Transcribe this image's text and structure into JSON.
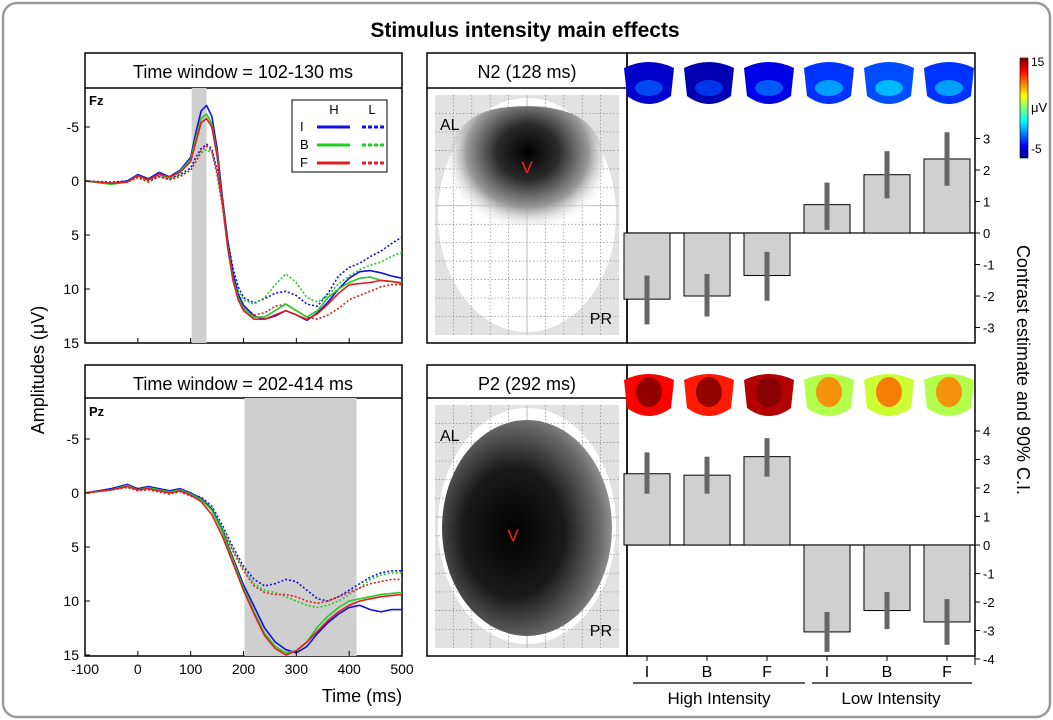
{
  "title": "Stimulus intensity main effects",
  "ylabel_left": "Amplitudes (μV)",
  "ylabel_right": "Contrast estimate and 90% C.I.",
  "xlabel": "Time (ms)",
  "colorbar": {
    "label": "μV",
    "ticks": [
      "15",
      "-5"
    ],
    "range": [
      -5,
      15
    ]
  },
  "colors": {
    "I": "#1010e0",
    "B": "#22cc22",
    "F": "#e02020",
    "bar": "#d0d0d0",
    "ci": "#666666",
    "marker": "#ff2020"
  },
  "legend": {
    "header_H": "H",
    "header_L": "L",
    "rows": [
      "I",
      "B",
      "F"
    ]
  },
  "group_labels": {
    "high": "High Intensity",
    "low": "Low Intensity"
  },
  "bar_categories": [
    "I",
    "B",
    "F",
    "I",
    "B",
    "F"
  ],
  "top": {
    "window_label": "Time window = 102-130 ms",
    "channel": "Fz",
    "component": "N2 (128 ms)",
    "map_labels": {
      "al": "AL",
      "pr": "PR"
    },
    "peak_marker": "V"
  },
  "bottom": {
    "window_label": "Time window = 202-414 ms",
    "channel": "Pz",
    "component": "P2 (292 ms)",
    "map_labels": {
      "al": "AL",
      "pr": "PR"
    },
    "peak_marker": "V"
  },
  "chart_data": [
    {
      "type": "line",
      "title": "Time window = 102-130 ms",
      "channel": "Fz",
      "xlabel": "Time (ms)",
      "ylabel": "Amplitudes (μV)",
      "xlim": [
        -100,
        500
      ],
      "ylim": [
        15,
        -8
      ],
      "y_inverted": true,
      "xticks": [
        -100,
        0,
        100,
        200,
        300,
        400,
        500
      ],
      "yticks": [
        -5,
        0,
        5,
        10,
        15
      ],
      "shaded_window": [
        102,
        130
      ],
      "x": [
        -100,
        -50,
        -20,
        0,
        20,
        40,
        60,
        80,
        100,
        110,
        120,
        130,
        140,
        150,
        160,
        170,
        180,
        190,
        200,
        220,
        240,
        260,
        280,
        300,
        320,
        340,
        360,
        380,
        400,
        420,
        440,
        460,
        480,
        500
      ],
      "series": [
        {
          "name": "I",
          "condition": "H",
          "values": [
            0,
            0.2,
            0,
            -0.6,
            -0.2,
            -0.8,
            -0.4,
            -1.0,
            -2.2,
            -4.5,
            -6.5,
            -7.0,
            -6.0,
            -3.0,
            1.5,
            5.5,
            8.5,
            10.5,
            11.5,
            12.5,
            12.8,
            12.5,
            12.0,
            12.4,
            12.9,
            12.2,
            11.2,
            10.0,
            9.0,
            8.4,
            8.3,
            8.5,
            8.8,
            9.0
          ]
        },
        {
          "name": "B",
          "condition": "H",
          "values": [
            0,
            0.3,
            0.1,
            -0.5,
            -0.1,
            -0.6,
            -0.3,
            -0.9,
            -2.0,
            -4.0,
            -5.8,
            -6.2,
            -5.3,
            -2.5,
            2.0,
            6.0,
            9.0,
            10.8,
            11.8,
            12.6,
            12.6,
            12.0,
            11.4,
            12.0,
            12.6,
            12.0,
            10.8,
            10.0,
            9.4,
            9.0,
            8.9,
            9.2,
            9.3,
            9.4
          ]
        },
        {
          "name": "F",
          "condition": "H",
          "values": [
            0,
            0.2,
            0.1,
            -0.5,
            -0.1,
            -0.6,
            -0.4,
            -0.8,
            -1.8,
            -3.6,
            -5.4,
            -5.8,
            -5.0,
            -2.3,
            2.0,
            6.2,
            9.2,
            11.0,
            12.0,
            12.8,
            12.8,
            12.4,
            12.0,
            12.4,
            12.8,
            12.3,
            11.4,
            10.4,
            9.6,
            9.5,
            9.4,
            9.2,
            9.3,
            9.5
          ]
        },
        {
          "name": "I",
          "condition": "L",
          "values": [
            0,
            0.1,
            0,
            -0.4,
            0,
            -0.4,
            -0.2,
            -0.6,
            -1.2,
            -2.2,
            -3.0,
            -3.4,
            -3.0,
            -1.0,
            2.0,
            5.5,
            8.0,
            9.8,
            10.8,
            11.3,
            10.9,
            10.4,
            10.2,
            10.6,
            11.4,
            11.6,
            10.4,
            8.8,
            8.0,
            7.6,
            7.0,
            6.5,
            5.8,
            5.2
          ]
        },
        {
          "name": "B",
          "condition": "L",
          "values": [
            0,
            0.3,
            0.1,
            -0.4,
            0,
            -0.5,
            -0.2,
            -0.5,
            -1.0,
            -1.8,
            -2.6,
            -2.9,
            -2.6,
            -0.8,
            2.2,
            5.8,
            8.5,
            10.2,
            11.0,
            11.4,
            10.8,
            9.6,
            8.6,
            9.4,
            10.8,
            11.2,
            10.6,
            9.5,
            8.8,
            8.2,
            7.8,
            7.5,
            7.0,
            6.6
          ]
        },
        {
          "name": "F",
          "condition": "L",
          "values": [
            0,
            0.2,
            0.1,
            -0.3,
            0.1,
            -0.4,
            -0.1,
            -0.4,
            -1.0,
            -1.8,
            -2.8,
            -3.2,
            -2.8,
            -0.6,
            2.4,
            6.0,
            8.8,
            10.6,
            11.6,
            12.4,
            12.2,
            11.6,
            11.4,
            12.0,
            12.6,
            12.8,
            12.4,
            11.8,
            11.0,
            10.6,
            10.2,
            9.8,
            9.6,
            9.6
          ]
        }
      ]
    },
    {
      "type": "line",
      "title": "Time window = 202-414 ms",
      "channel": "Pz",
      "xlabel": "Time (ms)",
      "ylabel": "Amplitudes (μV)",
      "xlim": [
        -100,
        500
      ],
      "ylim": [
        15,
        -8
      ],
      "y_inverted": true,
      "xticks": [
        -100,
        0,
        100,
        200,
        300,
        400,
        500
      ],
      "yticks": [
        -5,
        0,
        5,
        10,
        15
      ],
      "shaded_window": [
        202,
        414
      ],
      "x": [
        -100,
        -50,
        -20,
        0,
        20,
        40,
        60,
        80,
        100,
        120,
        140,
        160,
        180,
        200,
        220,
        240,
        260,
        280,
        300,
        320,
        340,
        360,
        380,
        400,
        420,
        440,
        460,
        480,
        500
      ],
      "series": [
        {
          "name": "I",
          "condition": "H",
          "values": [
            0,
            -0.4,
            -0.8,
            -0.4,
            -0.6,
            -0.4,
            -0.2,
            -0.4,
            0,
            0.5,
            1.5,
            3.5,
            6.0,
            8.5,
            10.5,
            12.5,
            13.8,
            14.5,
            14.8,
            14.2,
            13.0,
            12.0,
            11.2,
            10.6,
            10.4,
            10.8,
            11.0,
            10.8,
            10.8
          ]
        },
        {
          "name": "B",
          "condition": "H",
          "values": [
            0,
            -0.3,
            -0.7,
            -0.3,
            -0.5,
            -0.3,
            -0.1,
            -0.3,
            0.1,
            0.6,
            1.6,
            3.6,
            6.2,
            8.8,
            11.0,
            13.0,
            14.2,
            14.8,
            14.6,
            13.8,
            12.4,
            11.4,
            10.6,
            10.0,
            9.8,
            9.6,
            9.4,
            9.3,
            9.2
          ]
        },
        {
          "name": "F",
          "condition": "H",
          "values": [
            0,
            -0.3,
            -0.6,
            -0.3,
            -0.4,
            -0.2,
            0,
            -0.2,
            0.2,
            0.8,
            2.0,
            4.0,
            6.5,
            9.0,
            11.2,
            13.2,
            14.4,
            15.0,
            14.6,
            13.8,
            12.8,
            11.8,
            11.0,
            10.4,
            10.0,
            9.8,
            9.6,
            9.5,
            9.4
          ]
        },
        {
          "name": "I",
          "condition": "L",
          "values": [
            0,
            -0.4,
            -0.7,
            -0.4,
            -0.5,
            -0.3,
            -0.1,
            -0.3,
            0.1,
            0.4,
            1.2,
            3.0,
            5.0,
            6.8,
            8.0,
            8.6,
            8.4,
            8.0,
            8.2,
            9.0,
            9.8,
            10.0,
            9.6,
            9.0,
            8.4,
            7.8,
            7.4,
            7.2,
            7.2
          ]
        },
        {
          "name": "B",
          "condition": "L",
          "values": [
            0,
            -0.3,
            -0.6,
            -0.3,
            -0.4,
            -0.2,
            0,
            -0.2,
            0.2,
            0.5,
            1.3,
            3.2,
            5.2,
            7.0,
            8.4,
            9.0,
            9.2,
            9.6,
            10.0,
            10.4,
            10.6,
            10.4,
            10.0,
            9.4,
            8.8,
            8.0,
            7.6,
            7.4,
            7.4
          ]
        },
        {
          "name": "F",
          "condition": "L",
          "values": [
            0,
            -0.3,
            -0.5,
            -0.2,
            -0.3,
            -0.1,
            0.1,
            -0.1,
            0.3,
            0.6,
            1.5,
            3.4,
            5.4,
            7.2,
            8.6,
            9.2,
            9.4,
            9.4,
            9.6,
            10.0,
            10.2,
            10.0,
            9.6,
            9.2,
            8.8,
            8.4,
            8.2,
            8.0,
            8.0
          ]
        }
      ]
    },
    {
      "type": "bar",
      "title": "N2 (128 ms)",
      "categories": [
        "I",
        "B",
        "F",
        "I",
        "B",
        "F"
      ],
      "groups": [
        "High Intensity",
        "High Intensity",
        "High Intensity",
        "Low Intensity",
        "Low Intensity",
        "Low Intensity"
      ],
      "values": [
        -2.1,
        -2.0,
        -1.35,
        0.9,
        1.85,
        2.35
      ],
      "ci_low": [
        -2.9,
        -2.65,
        -2.15,
        0.1,
        1.1,
        1.5
      ],
      "ci_high": [
        -1.35,
        -1.3,
        -0.6,
        1.6,
        2.6,
        3.2
      ],
      "ylabel": "Contrast estimate and 90% C.I.",
      "ylim": [
        -3.5,
        3.5
      ],
      "yticks": [
        -3,
        -2,
        -1,
        0,
        1,
        2,
        3
      ],
      "topomap_values": [
        -3.5,
        -4.0,
        -3.0,
        -1.5,
        -1.0,
        -1.5
      ]
    },
    {
      "type": "bar",
      "title": "P2 (292 ms)",
      "categories": [
        "I",
        "B",
        "F",
        "I",
        "B",
        "F"
      ],
      "groups": [
        "High Intensity",
        "High Intensity",
        "High Intensity",
        "Low Intensity",
        "Low Intensity",
        "Low Intensity"
      ],
      "values": [
        2.5,
        2.45,
        3.1,
        -3.05,
        -2.3,
        -2.7
      ],
      "ci_low": [
        1.8,
        1.8,
        2.4,
        -3.75,
        -2.95,
        -3.5
      ],
      "ci_high": [
        3.25,
        3.1,
        3.75,
        -2.35,
        -1.65,
        -1.9
      ],
      "ylabel": "Contrast estimate and 90% C.I.",
      "ylim": [
        -4.2,
        4.5
      ],
      "yticks": [
        -4,
        -3,
        -2,
        -1,
        0,
        1,
        2,
        3,
        4
      ],
      "topomap_values": [
        12.5,
        12.0,
        14.0,
        6.0,
        6.5,
        6.0
      ]
    }
  ]
}
